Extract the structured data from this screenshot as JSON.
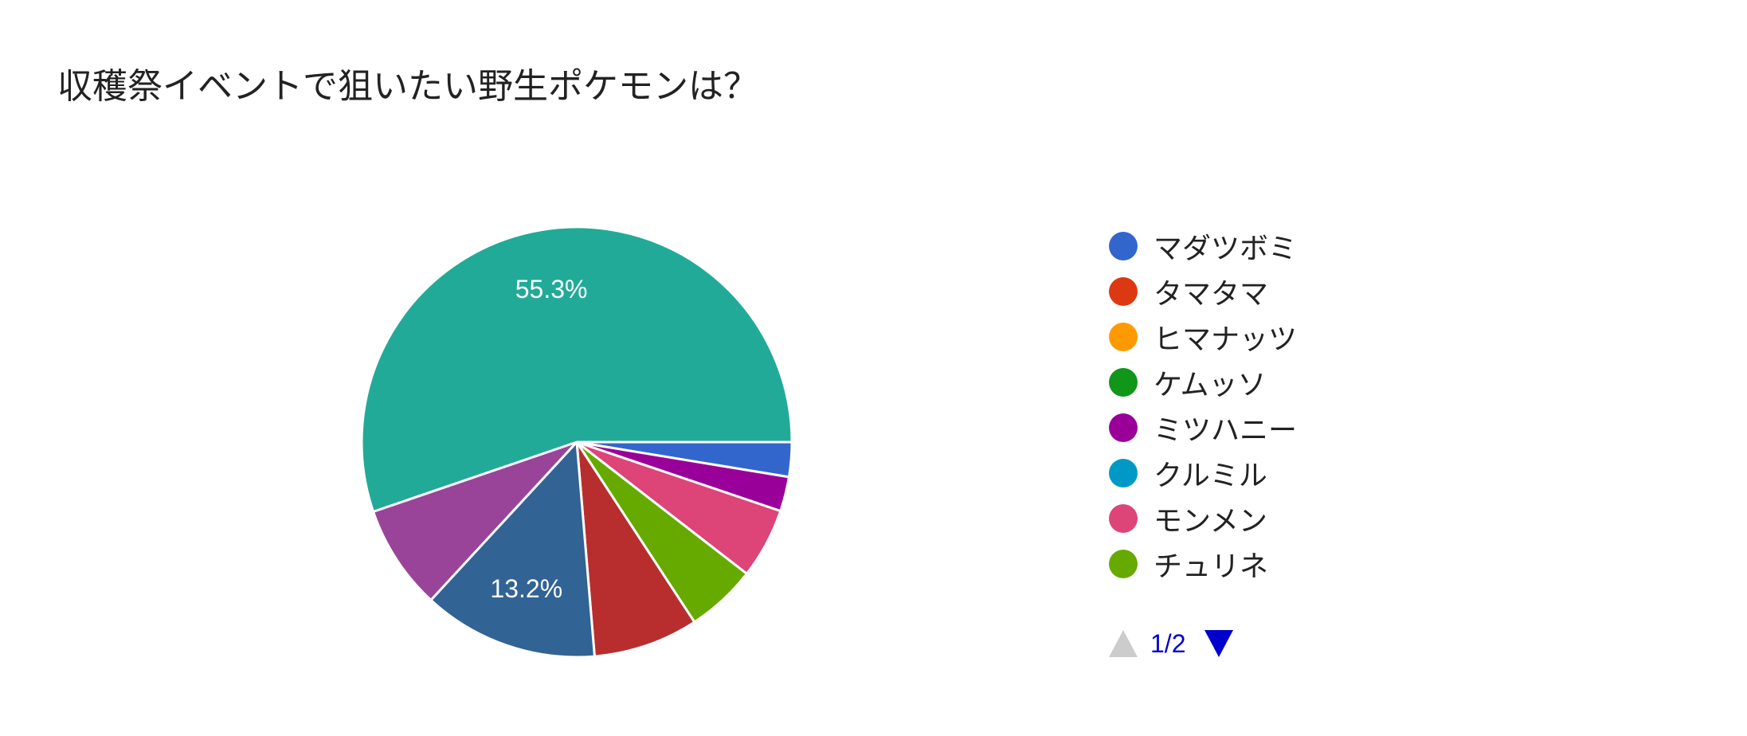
{
  "chart_data": {
    "type": "pie",
    "title": "収穫祭イベントで狙いたい野生ポケモンは？",
    "slices": [
      {
        "label": "マダツボミ",
        "value": 2.6,
        "color": "#3366cc"
      },
      {
        "label": "ミツハニー",
        "value": 2.6,
        "color": "#990099"
      },
      {
        "label": "モンメン",
        "value": 5.3,
        "color": "#dd4477"
      },
      {
        "label": "チュリネ",
        "value": 5.3,
        "color": "#66aa00"
      },
      {
        "label": "",
        "value": 7.9,
        "color": "#b82e2e"
      },
      {
        "label": "",
        "value": 13.2,
        "color": "#316395",
        "data_label": "13.2%"
      },
      {
        "label": "",
        "value": 7.9,
        "color": "#994499"
      },
      {
        "label": "",
        "value": 55.3,
        "color": "#22aa99",
        "data_label": "55.3%"
      }
    ],
    "legend": {
      "position": "right",
      "items": [
        {
          "label": "マダツボミ",
          "color": "#3366cc"
        },
        {
          "label": "タマタマ",
          "color": "#dc3912"
        },
        {
          "label": "ヒマナッツ",
          "color": "#ff9900"
        },
        {
          "label": "ケムッソ",
          "color": "#109618"
        },
        {
          "label": "ミツハニー",
          "color": "#990099"
        },
        {
          "label": "クルミル",
          "color": "#0099c6"
        },
        {
          "label": "モンメン",
          "color": "#dd4477"
        },
        {
          "label": "チュリネ",
          "color": "#66aa00"
        }
      ]
    },
    "pager": {
      "text": "1/2"
    }
  }
}
